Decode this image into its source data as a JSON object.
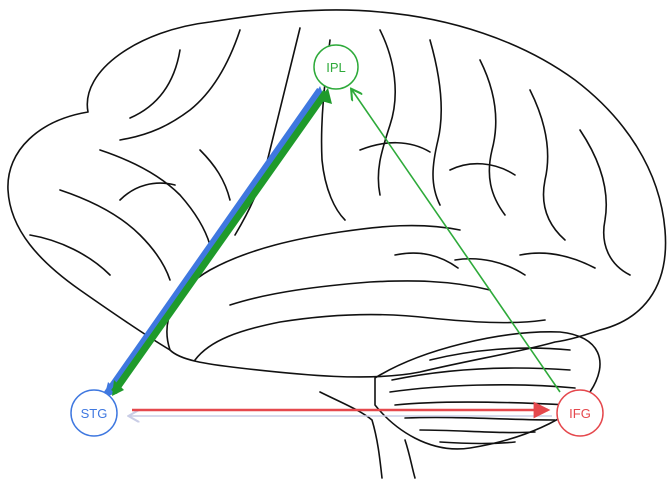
{
  "nodes": {
    "ipl": {
      "label": "IPL",
      "color": "#2eaa3a"
    },
    "stg": {
      "label": "STG",
      "color": "#3f78e0"
    },
    "ifg": {
      "label": "IFG",
      "color": "#e5484d"
    }
  },
  "connections": [
    {
      "from": "stg",
      "to": "ipl",
      "color": "#3f78e0",
      "style": "thick-bidirectional"
    },
    {
      "from": "stg",
      "to": "ipl",
      "color": "#1f9a2b",
      "style": "thick-bidirectional"
    },
    {
      "from": "ifg",
      "to": "ipl",
      "color": "#2eaa3a",
      "style": "thin-arrow"
    },
    {
      "from": "stg",
      "to": "ifg",
      "color": "#e5484d",
      "style": "medium-arrow"
    },
    {
      "from": "ifg",
      "to": "stg",
      "color": "#c9cde6",
      "style": "thin-arrow"
    }
  ],
  "background": {
    "illustration": "brain-lateral-view",
    "line_color": "#111111"
  }
}
